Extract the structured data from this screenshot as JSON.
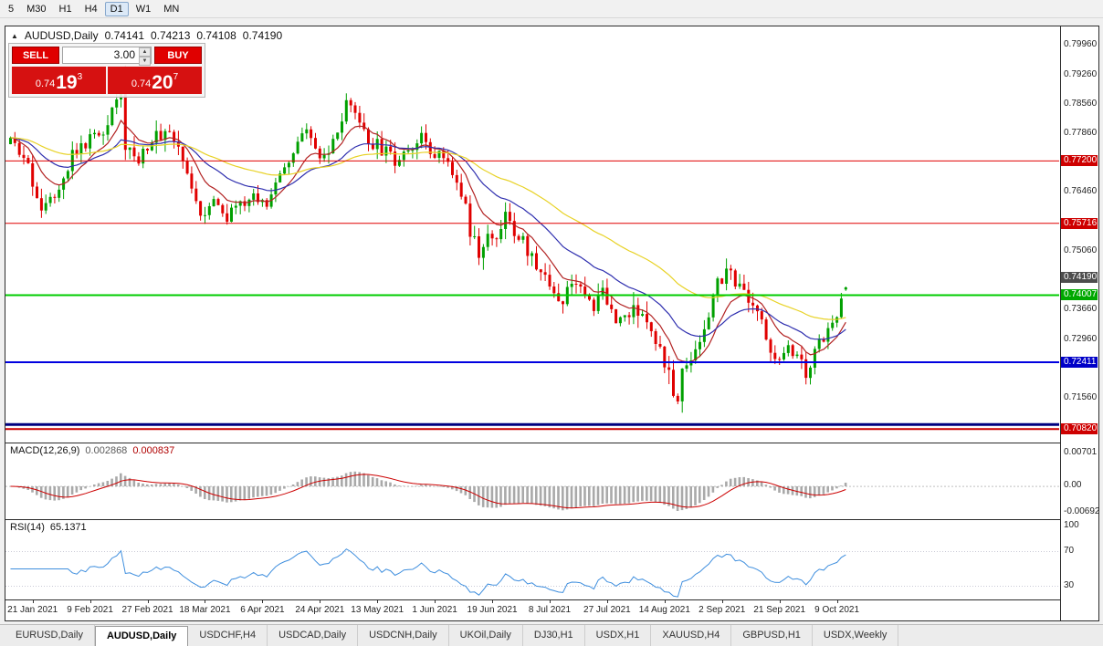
{
  "toolbar": {
    "periods": [
      "5",
      "M30",
      "H1",
      "H4",
      "D1",
      "W1",
      "MN"
    ],
    "active_period": "D1"
  },
  "header": {
    "symbol": "AUDUSD,Daily",
    "open": "0.74141",
    "high": "0.74213",
    "low": "0.74108",
    "close": "0.74190"
  },
  "trade_panel": {
    "sell_label": "SELL",
    "buy_label": "BUY",
    "volume": "3.00",
    "sell_price": {
      "prefix": "0.74",
      "pips": "19",
      "point": "3"
    },
    "buy_price": {
      "prefix": "0.74",
      "pips": "20",
      "point": "7"
    }
  },
  "price_axis_ticks": [
    "0.79960",
    "0.79260",
    "0.78560",
    "0.77860",
    "0.77160",
    "0.76460",
    "0.75760",
    "0.75060",
    "0.74360",
    "0.73660",
    "0.72960",
    "0.72260",
    "0.71560",
    "0.70860"
  ],
  "macd_panel": {
    "title": "MACD(12,26,9)",
    "value_main": "0.002868",
    "value_signal": "0.000837",
    "axis": [
      "0.00701",
      "0.00",
      "-0.00692"
    ]
  },
  "rsi_panel": {
    "title": "RSI(14)",
    "value": "65.1371",
    "axis": [
      "100",
      "70",
      "30"
    ]
  },
  "date_axis": [
    "21 Jan 2021",
    "9 Feb 2021",
    "27 Feb 2021",
    "18 Mar 2021",
    "6 Apr 2021",
    "24 Apr 2021",
    "13 May 2021",
    "1 Jun 2021",
    "19 Jun 2021",
    "8 Jul 2021",
    "27 Jul 2021",
    "14 Aug 2021",
    "2 Sep 2021",
    "21 Sep 2021",
    "9 Oct 2021"
  ],
  "tabs": [
    "EURUSD,Daily",
    "AUDUSD,Daily",
    "USDCHF,H4",
    "USDCAD,Daily",
    "USDCNH,Daily",
    "UKOil,Daily",
    "DJ30,H1",
    "USDX,H1",
    "XAUUSD,H4",
    "GBPUSD,H1",
    "USDX,Weekly"
  ],
  "active_tab": "AUDUSD,Daily",
  "chart_data": {
    "type": "candlestick",
    "symbol": "AUDUSD",
    "timeframe": "Daily",
    "title": "AUDUSD,Daily",
    "x_range": [
      "21 Jan 2021",
      "15 Oct 2021"
    ],
    "y_range": [
      0.705,
      0.804
    ],
    "bars": 190,
    "ohlc_last": [
      0.74141,
      0.74213,
      0.74108,
      0.7419
    ],
    "price_path": [
      [
        0,
        0.776
      ],
      [
        3,
        0.7725
      ],
      [
        7,
        0.7615
      ],
      [
        10,
        0.765
      ],
      [
        14,
        0.7735
      ],
      [
        18,
        0.777
      ],
      [
        21,
        0.78
      ],
      [
        24,
        0.788
      ],
      [
        25,
        0.79
      ],
      [
        26,
        0.776
      ],
      [
        28,
        0.7725
      ],
      [
        31,
        0.776
      ],
      [
        34,
        0.7785
      ],
      [
        36,
        0.78
      ],
      [
        38,
        0.774
      ],
      [
        41,
        0.7665
      ],
      [
        43,
        0.76
      ],
      [
        46,
        0.763
      ],
      [
        49,
        0.7585
      ],
      [
        52,
        0.761
      ],
      [
        55,
        0.7635
      ],
      [
        58,
        0.761
      ],
      [
        61,
        0.77
      ],
      [
        64,
        0.7745
      ],
      [
        67,
        0.7785
      ],
      [
        70,
        0.772
      ],
      [
        73,
        0.7755
      ],
      [
        76,
        0.7845
      ],
      [
        78,
        0.7825
      ],
      [
        81,
        0.777
      ],
      [
        84,
        0.7745
      ],
      [
        87,
        0.772
      ],
      [
        90,
        0.7755
      ],
      [
        93,
        0.777
      ],
      [
        96,
        0.7745
      ],
      [
        99,
        0.7715
      ],
      [
        102,
        0.765
      ],
      [
        104,
        0.756
      ],
      [
        106,
        0.7485
      ],
      [
        109,
        0.7545
      ],
      [
        112,
        0.758
      ],
      [
        115,
        0.754
      ],
      [
        118,
        0.749
      ],
      [
        121,
        0.7445
      ],
      [
        123,
        0.7415
      ],
      [
        125,
        0.7385
      ],
      [
        127,
        0.7445
      ],
      [
        129,
        0.7415
      ],
      [
        131,
        0.737
      ],
      [
        134,
        0.74
      ],
      [
        137,
        0.7345
      ],
      [
        140,
        0.7365
      ],
      [
        143,
        0.734
      ],
      [
        146,
        0.731
      ],
      [
        148,
        0.7255
      ],
      [
        150,
        0.7135
      ],
      [
        152,
        0.7215
      ],
      [
        154,
        0.726
      ],
      [
        156,
        0.73
      ],
      [
        158,
        0.7355
      ],
      [
        160,
        0.743
      ],
      [
        162,
        0.7465
      ],
      [
        164,
        0.743
      ],
      [
        166,
        0.7395
      ],
      [
        168,
        0.736
      ],
      [
        170,
        0.734
      ],
      [
        172,
        0.7275
      ],
      [
        174,
        0.7235
      ],
      [
        176,
        0.729
      ],
      [
        178,
        0.7255
      ],
      [
        180,
        0.7205
      ],
      [
        182,
        0.7265
      ],
      [
        184,
        0.73
      ],
      [
        186,
        0.734
      ],
      [
        188,
        0.7385
      ],
      [
        189,
        0.7419
      ]
    ],
    "volatility": [
      [
        0,
        0.0038
      ],
      [
        20,
        0.005
      ],
      [
        26,
        0.006
      ],
      [
        45,
        0.0042
      ],
      [
        70,
        0.0038
      ],
      [
        76,
        0.0045
      ],
      [
        100,
        0.004
      ],
      [
        106,
        0.0058
      ],
      [
        125,
        0.0042
      ],
      [
        150,
        0.0065
      ],
      [
        160,
        0.0048
      ],
      [
        175,
        0.0045
      ],
      [
        189,
        0.0035
      ]
    ],
    "candle_up_color": "#00A000",
    "candle_down_color": "#E00000",
    "moving_averages": [
      {
        "period": 10,
        "color": "#B22222"
      },
      {
        "period": 25,
        "color": "#2F2FAF"
      },
      {
        "period": 55,
        "color": "#E8D226"
      }
    ],
    "hlines": [
      {
        "price": 0.772,
        "color": "#E00000",
        "width": 1,
        "label": "0.77200",
        "label_bg": "#CE0000"
      },
      {
        "price": 0.75716,
        "color": "#E00000",
        "width": 1,
        "label": "0.75716",
        "label_bg": "#CE0000"
      },
      {
        "price": 0.74007,
        "color": "#00CC00",
        "width": 2,
        "label": "0.74007",
        "label_bg": "#00A800"
      },
      {
        "price": 0.72411,
        "color": "#0000E0",
        "width": 2,
        "label": "0.72411",
        "label_bg": "#0000C8"
      },
      {
        "price": 0.7093,
        "color": "#000080",
        "width": 3,
        "label": null,
        "label_bg": null
      },
      {
        "price": 0.7082,
        "color": "#CC0000",
        "width": 2,
        "label": "0.70820",
        "label_bg": "#CE0000"
      }
    ],
    "current_price": {
      "value": 0.7419,
      "label_bg": "#4D4D4D"
    },
    "date_tick_bars": [
      5,
      18,
      31,
      44,
      57,
      70,
      83,
      96,
      109,
      122,
      135,
      148,
      161,
      174,
      187
    ],
    "indicators": {
      "macd": {
        "params": [
          12,
          26,
          9
        ],
        "value_main": 0.002868,
        "value_signal": 0.000837,
        "axis_labels": [
          0.00701,
          0.0,
          -0.00692
        ],
        "histogram_color": "#A9A9A9",
        "signal_color": "#CC0000"
      },
      "rsi": {
        "period": 14,
        "value": 65.1371,
        "levels": [
          70,
          30
        ],
        "color": "#3E8EDE"
      }
    }
  }
}
